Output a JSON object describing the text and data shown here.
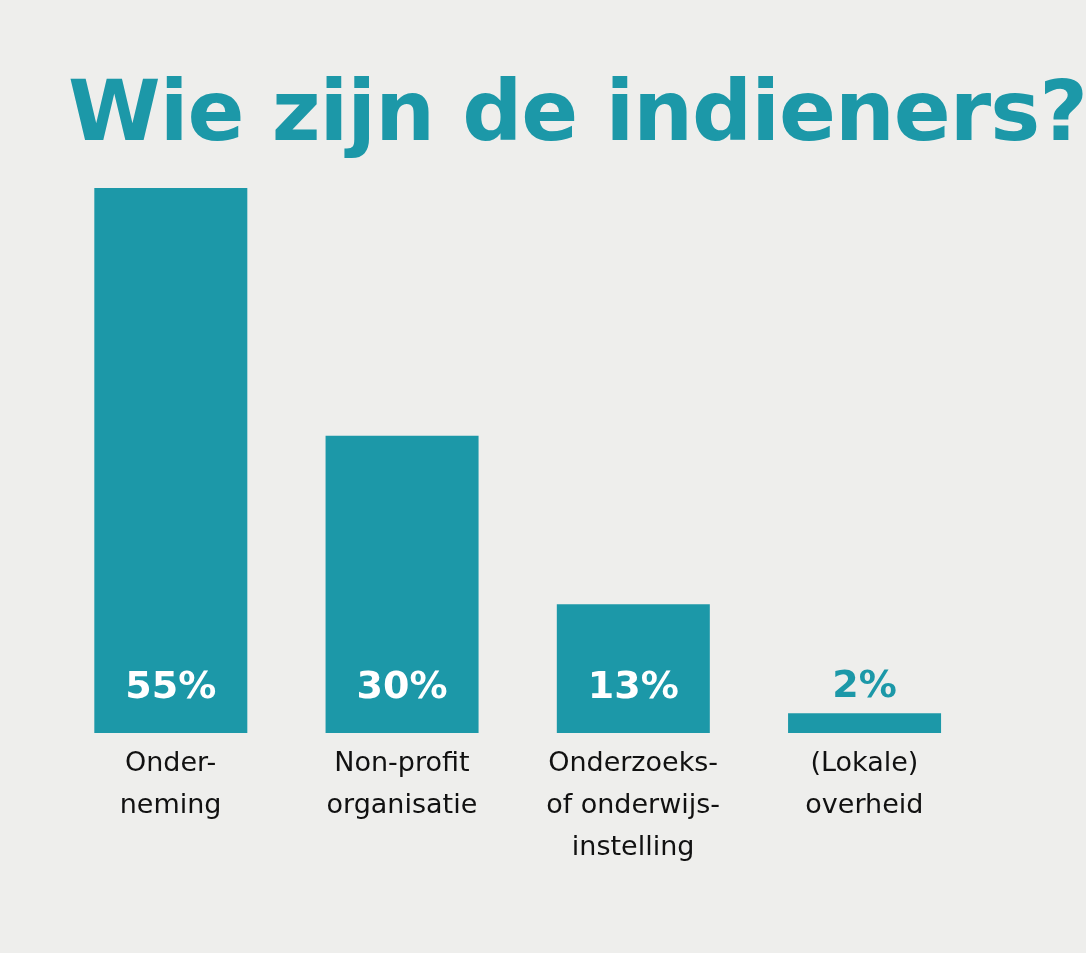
{
  "chart_data": {
    "type": "bar",
    "title": "Wie zijn de indieners?",
    "categories": [
      "Onder-\nneming",
      "Non-profit\norganisatie",
      "Onderzoeks-\nof onderwijs-\ninstelling",
      "(Lokale)\noverheid"
    ],
    "values": [
      55,
      30,
      13,
      2
    ],
    "value_labels": [
      "55%",
      "30%",
      "13%",
      "2%"
    ],
    "color": "#1c98a8"
  }
}
